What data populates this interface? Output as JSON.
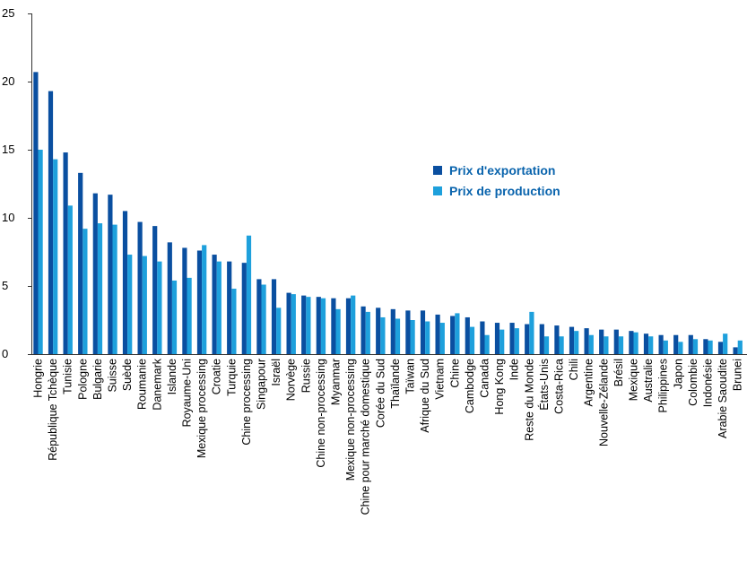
{
  "chart_data": {
    "type": "bar",
    "title": "",
    "xlabel": "",
    "ylabel": "",
    "ylim": [
      0,
      25
    ],
    "yticks": [
      0,
      5,
      10,
      15,
      20,
      25
    ],
    "grid": false,
    "legend_position": "center-right",
    "categories": [
      "Hongrie",
      "République Tchèque",
      "Tunisie",
      "Pologne",
      "Bulgarie",
      "Suisse",
      "Suède",
      "Roumanie",
      "Danemark",
      "Islande",
      "Royaume-Uni",
      "Mexique processing",
      "Croatie",
      "Turquie",
      "Chine processing",
      "Singapour",
      "Israël",
      "Norvège",
      "Russie",
      "Chine non-processing",
      "Myanmar",
      "Mexique non-processing",
      "Chine pour marché domestique",
      "Corée du Sud",
      "Thaïlande",
      "Taïwan",
      "Afrique du Sud",
      "Vietnam",
      "Chine",
      "Cambodge",
      "Canada",
      "Hong Kong",
      "Inde",
      "Reste du Monde",
      "États-Unis",
      "Costa-Rica",
      "Chili",
      "Argentine",
      "Nouvelle-Zélande",
      "Brésil",
      "Mexique",
      "Australie",
      "Philippines",
      "Japon",
      "Colombie",
      "Indonésie",
      "Arabie Saoudite",
      "Brunei"
    ],
    "series": [
      {
        "name": "Prix d'exportation",
        "color": "#0a4fa0",
        "values": [
          20.7,
          19.3,
          14.8,
          13.3,
          11.8,
          11.7,
          10.5,
          9.7,
          9.4,
          8.2,
          7.8,
          7.6,
          7.3,
          6.8,
          6.7,
          5.5,
          5.5,
          4.5,
          4.3,
          4.2,
          4.1,
          4.1,
          3.5,
          3.4,
          3.3,
          3.2,
          3.2,
          2.9,
          2.8,
          2.7,
          2.4,
          2.3,
          2.3,
          2.2,
          2.2,
          2.1,
          2.0,
          1.9,
          1.8,
          1.8,
          1.7,
          1.5,
          1.4,
          1.4,
          1.4,
          1.1,
          0.9,
          0.5
        ]
      },
      {
        "name": "Prix de production",
        "color": "#1ea0dc",
        "values": [
          15.0,
          14.3,
          10.9,
          9.2,
          9.6,
          9.5,
          7.3,
          7.2,
          6.8,
          5.4,
          5.6,
          8.0,
          6.8,
          4.8,
          8.7,
          5.1,
          3.4,
          4.4,
          4.2,
          4.1,
          3.3,
          4.3,
          3.1,
          2.7,
          2.6,
          2.5,
          2.4,
          2.3,
          3.0,
          2.0,
          1.4,
          1.8,
          1.9,
          3.1,
          1.3,
          1.3,
          1.7,
          1.4,
          1.3,
          1.3,
          1.6,
          1.3,
          1.0,
          0.9,
          1.1,
          1.0,
          1.5,
          1.0
        ]
      }
    ]
  }
}
